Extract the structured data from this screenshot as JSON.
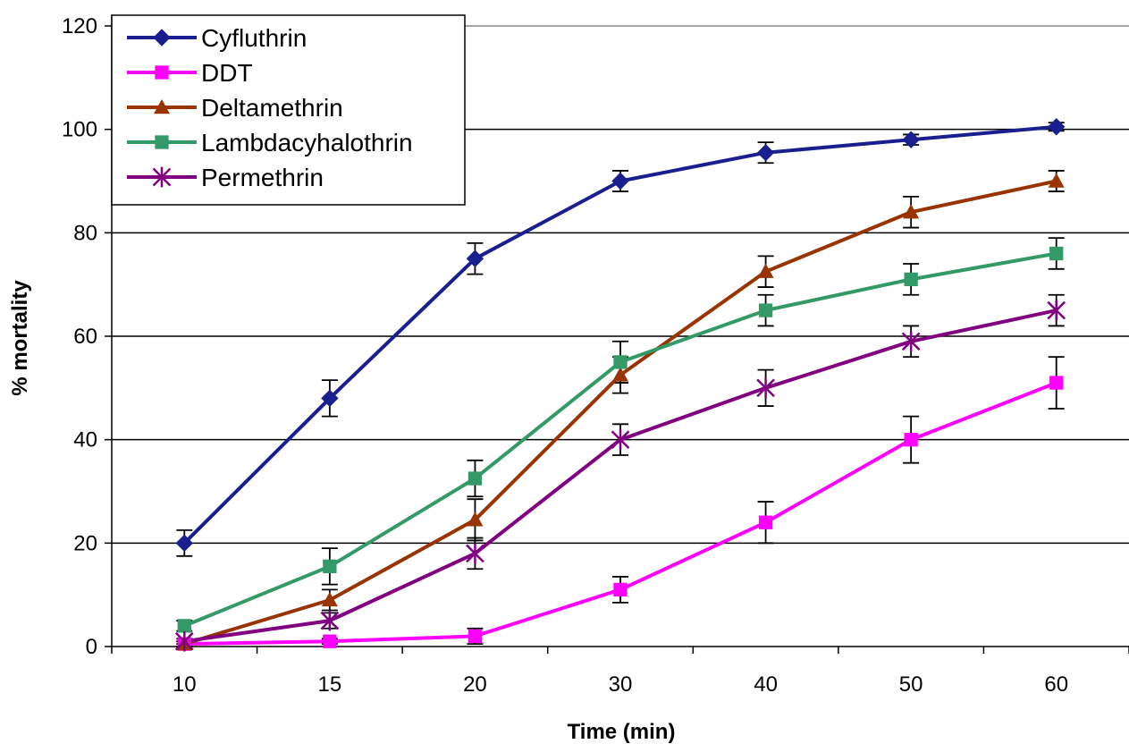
{
  "chart_data": {
    "type": "line",
    "title": "",
    "xlabel": "Time (min)",
    "ylabel": "% mortality",
    "categories": [
      "10",
      "15",
      "20",
      "30",
      "40",
      "50",
      "60"
    ],
    "ylim": [
      0,
      120
    ],
    "yticks": [
      "0",
      "20",
      "40",
      "60",
      "80",
      "100",
      "120"
    ],
    "grid": "horizontal",
    "legend_position": "top-left",
    "series": [
      {
        "name": "Cyfluthrin",
        "color": "#1a1f8f",
        "marker": "diamond",
        "values": [
          20,
          48,
          75,
          90,
          95.5,
          98,
          100.5
        ],
        "errors": [
          2.5,
          3.5,
          3,
          2,
          2,
          1,
          0.8
        ]
      },
      {
        "name": "DDT",
        "color": "#ff00ff",
        "marker": "square",
        "values": [
          0.5,
          1,
          2,
          11,
          24,
          40,
          51
        ],
        "errors": [
          0.5,
          0.5,
          1.5,
          2.5,
          4,
          4.5,
          5
        ]
      },
      {
        "name": "Deltamethrin",
        "color": "#993300",
        "marker": "triangle",
        "values": [
          0.5,
          9,
          24.5,
          52.5,
          72.5,
          84,
          90
        ],
        "errors": [
          0.5,
          2,
          4,
          3.5,
          3,
          3,
          2
        ]
      },
      {
        "name": "Lambdacyhalothrin",
        "color": "#339966",
        "marker": "square",
        "values": [
          4,
          15.5,
          32.5,
          55,
          65,
          71,
          76
        ],
        "errors": [
          1,
          3.5,
          3.5,
          4,
          3,
          3,
          3
        ]
      },
      {
        "name": "Permethrin",
        "color": "#800080",
        "marker": "star",
        "values": [
          1,
          5,
          18,
          40,
          50,
          59,
          65
        ],
        "errors": [
          0.5,
          1.5,
          3,
          3,
          3.5,
          3,
          3
        ]
      }
    ]
  }
}
